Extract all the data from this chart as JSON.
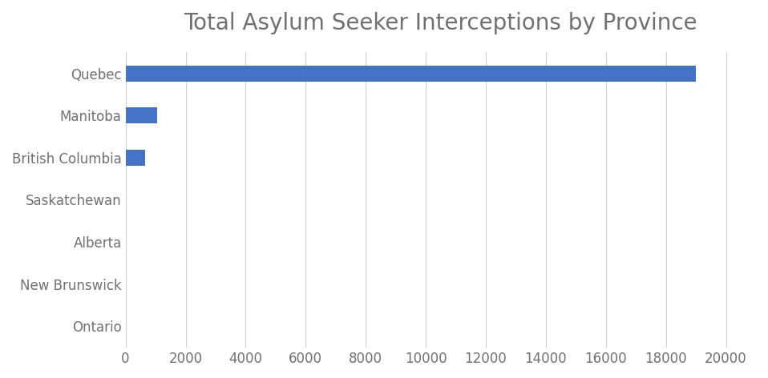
{
  "title": "Total Asylum Seeker Interceptions by Province",
  "categories": [
    "Ontario",
    "New Brunswick",
    "Alberta",
    "Saskatchewan",
    "British Columbia",
    "Manitoba",
    "Quebec"
  ],
  "values": [
    0,
    0,
    0,
    0,
    650,
    1050,
    19000
  ],
  "bar_color": "#4472C4",
  "xlim": [
    0,
    21000
  ],
  "xticks": [
    0,
    2000,
    4000,
    6000,
    8000,
    10000,
    12000,
    14000,
    16000,
    18000,
    20000
  ],
  "title_fontsize": 20,
  "tick_label_fontsize": 12,
  "background_color": "#ffffff",
  "grid_color": "#d0d0d0",
  "text_color": "#707070",
  "bar_height": 0.38
}
